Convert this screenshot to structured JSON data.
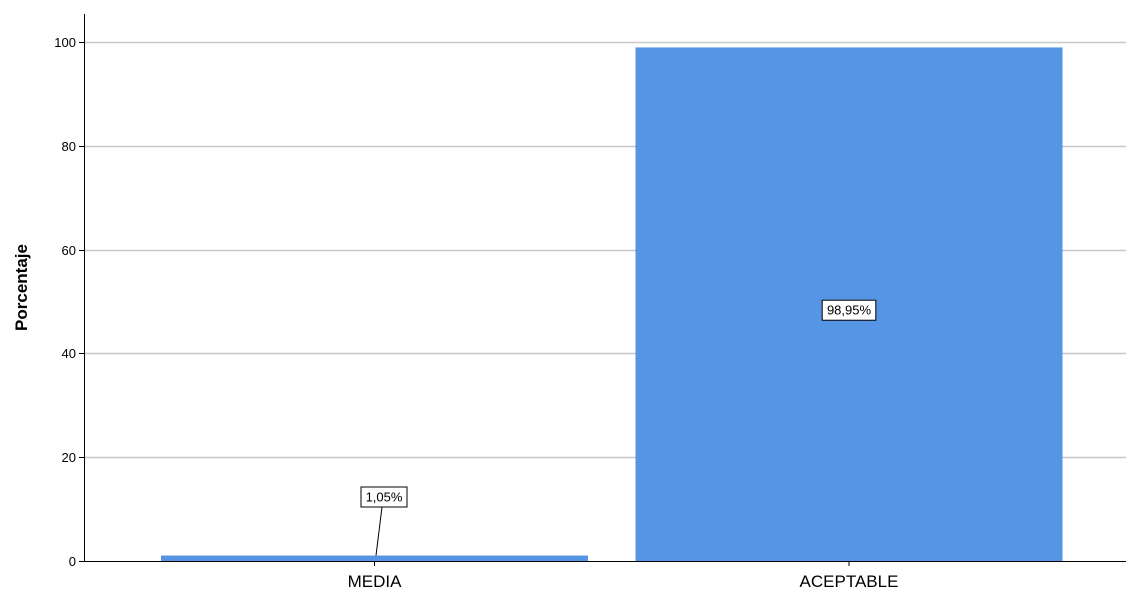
{
  "chart_data": {
    "type": "bar",
    "title": "",
    "xlabel": "",
    "ylabel": "Porcentaje",
    "categories": [
      "MEDIA",
      "ACEPTABLE"
    ],
    "values": [
      1.05,
      98.95
    ],
    "data_labels": [
      "1,05%",
      "98,95%"
    ],
    "ylim": [
      0,
      105
    ],
    "yticks": [
      0,
      20,
      40,
      60,
      80,
      100
    ],
    "grid": true,
    "bar_color": "#5595e3",
    "grid_color": "#c8c8c8",
    "axis_color": "#000000"
  }
}
